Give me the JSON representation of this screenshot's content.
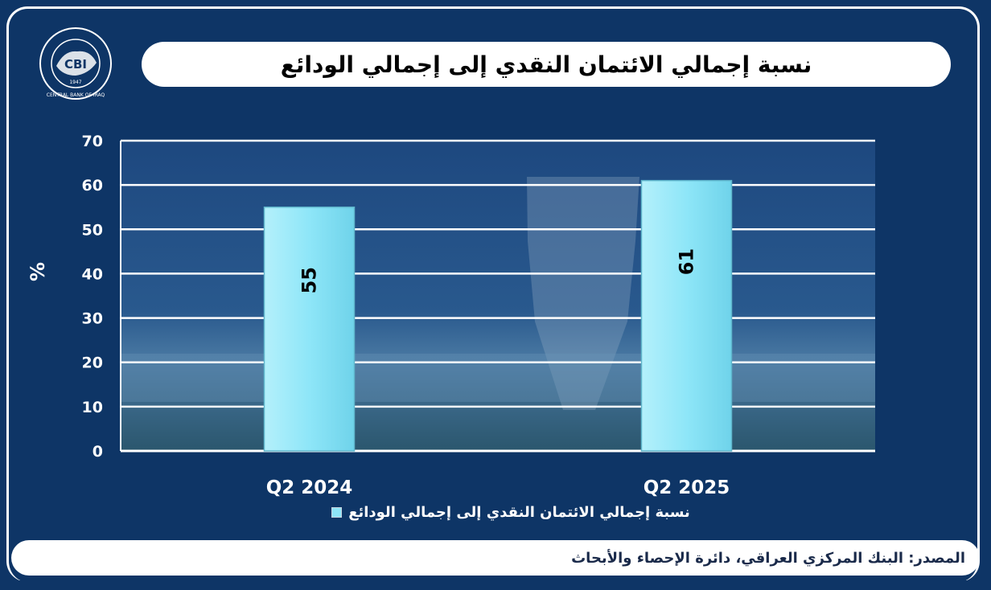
{
  "title": "نسبة إجمالي الائتمان النقدي إلى إجمالي الودائع",
  "logo": {
    "abbr": "CBI",
    "year": "1947",
    "ring_text": "CENTRAL BANK OF IRAQ"
  },
  "colors": {
    "background": "#0e3566",
    "bar_fill": "#8ee6f8",
    "grid": "#ffffff",
    "text": "#ffffff"
  },
  "chart_data": {
    "type": "bar",
    "categories": [
      "Q2 2024",
      "Q2 2025"
    ],
    "series": [
      {
        "name": "نسبة إجمالي الائتمان النقدي إلى إجمالي الودائع",
        "values": [
          55,
          61
        ]
      }
    ],
    "data_labels": [
      "55",
      "61"
    ],
    "ylabel": "%",
    "ylim": [
      0,
      70
    ],
    "yticks": [
      0,
      10,
      20,
      30,
      40,
      50,
      60,
      70
    ],
    "grid": true,
    "legend": "bottom"
  },
  "legend_label": "نسبة إجمالي الائتمان النقدي إلى إجمالي الودائع",
  "footer": {
    "source": "المصدر: البنك المركزي العراقي، دائرة الإحصاء والأبحاث"
  }
}
